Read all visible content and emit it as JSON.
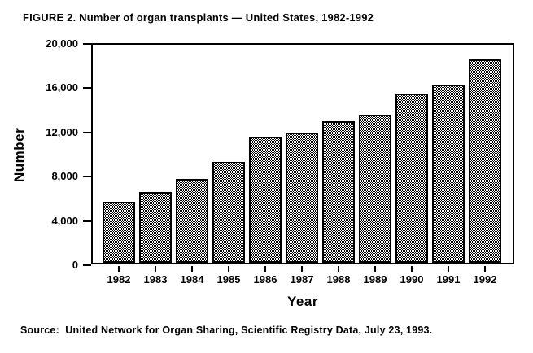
{
  "figure": {
    "title": "FIGURE 2. Number of organ transplants — United States, 1982-1992",
    "source": "Source:  United Network for Organ Sharing, Scientific Registry Data, July 23, 1993."
  },
  "colors": {
    "foreground": "#000000",
    "background": "#ffffff",
    "bar_pattern": "black-white 1px checkerboard dither with black border"
  },
  "chart_data": {
    "type": "bar",
    "title": "FIGURE 2. Number of organ transplants — United States, 1982-1992",
    "xlabel": "Year",
    "ylabel": "Number",
    "categories": [
      "1982",
      "1983",
      "1984",
      "1985",
      "1986",
      "1987",
      "1988",
      "1989",
      "1990",
      "1991",
      "1992"
    ],
    "values": [
      5500,
      6400,
      7600,
      9100,
      11400,
      11800,
      12800,
      13400,
      15300,
      16100,
      18400
    ],
    "ylim": [
      0,
      20000
    ],
    "yticks": [
      0,
      4000,
      8000,
      12000,
      16000,
      20000
    ],
    "ytick_labels": [
      "0",
      "4,000",
      "8,000",
      "12,000",
      "16,000",
      "20,000"
    ],
    "grid": false,
    "legend": "none",
    "plot_frame": "full rectangle border, ticks outside axes",
    "source": "Source:  United Network for Organ Sharing, Scientific Registry Data, July 23, 1993."
  }
}
